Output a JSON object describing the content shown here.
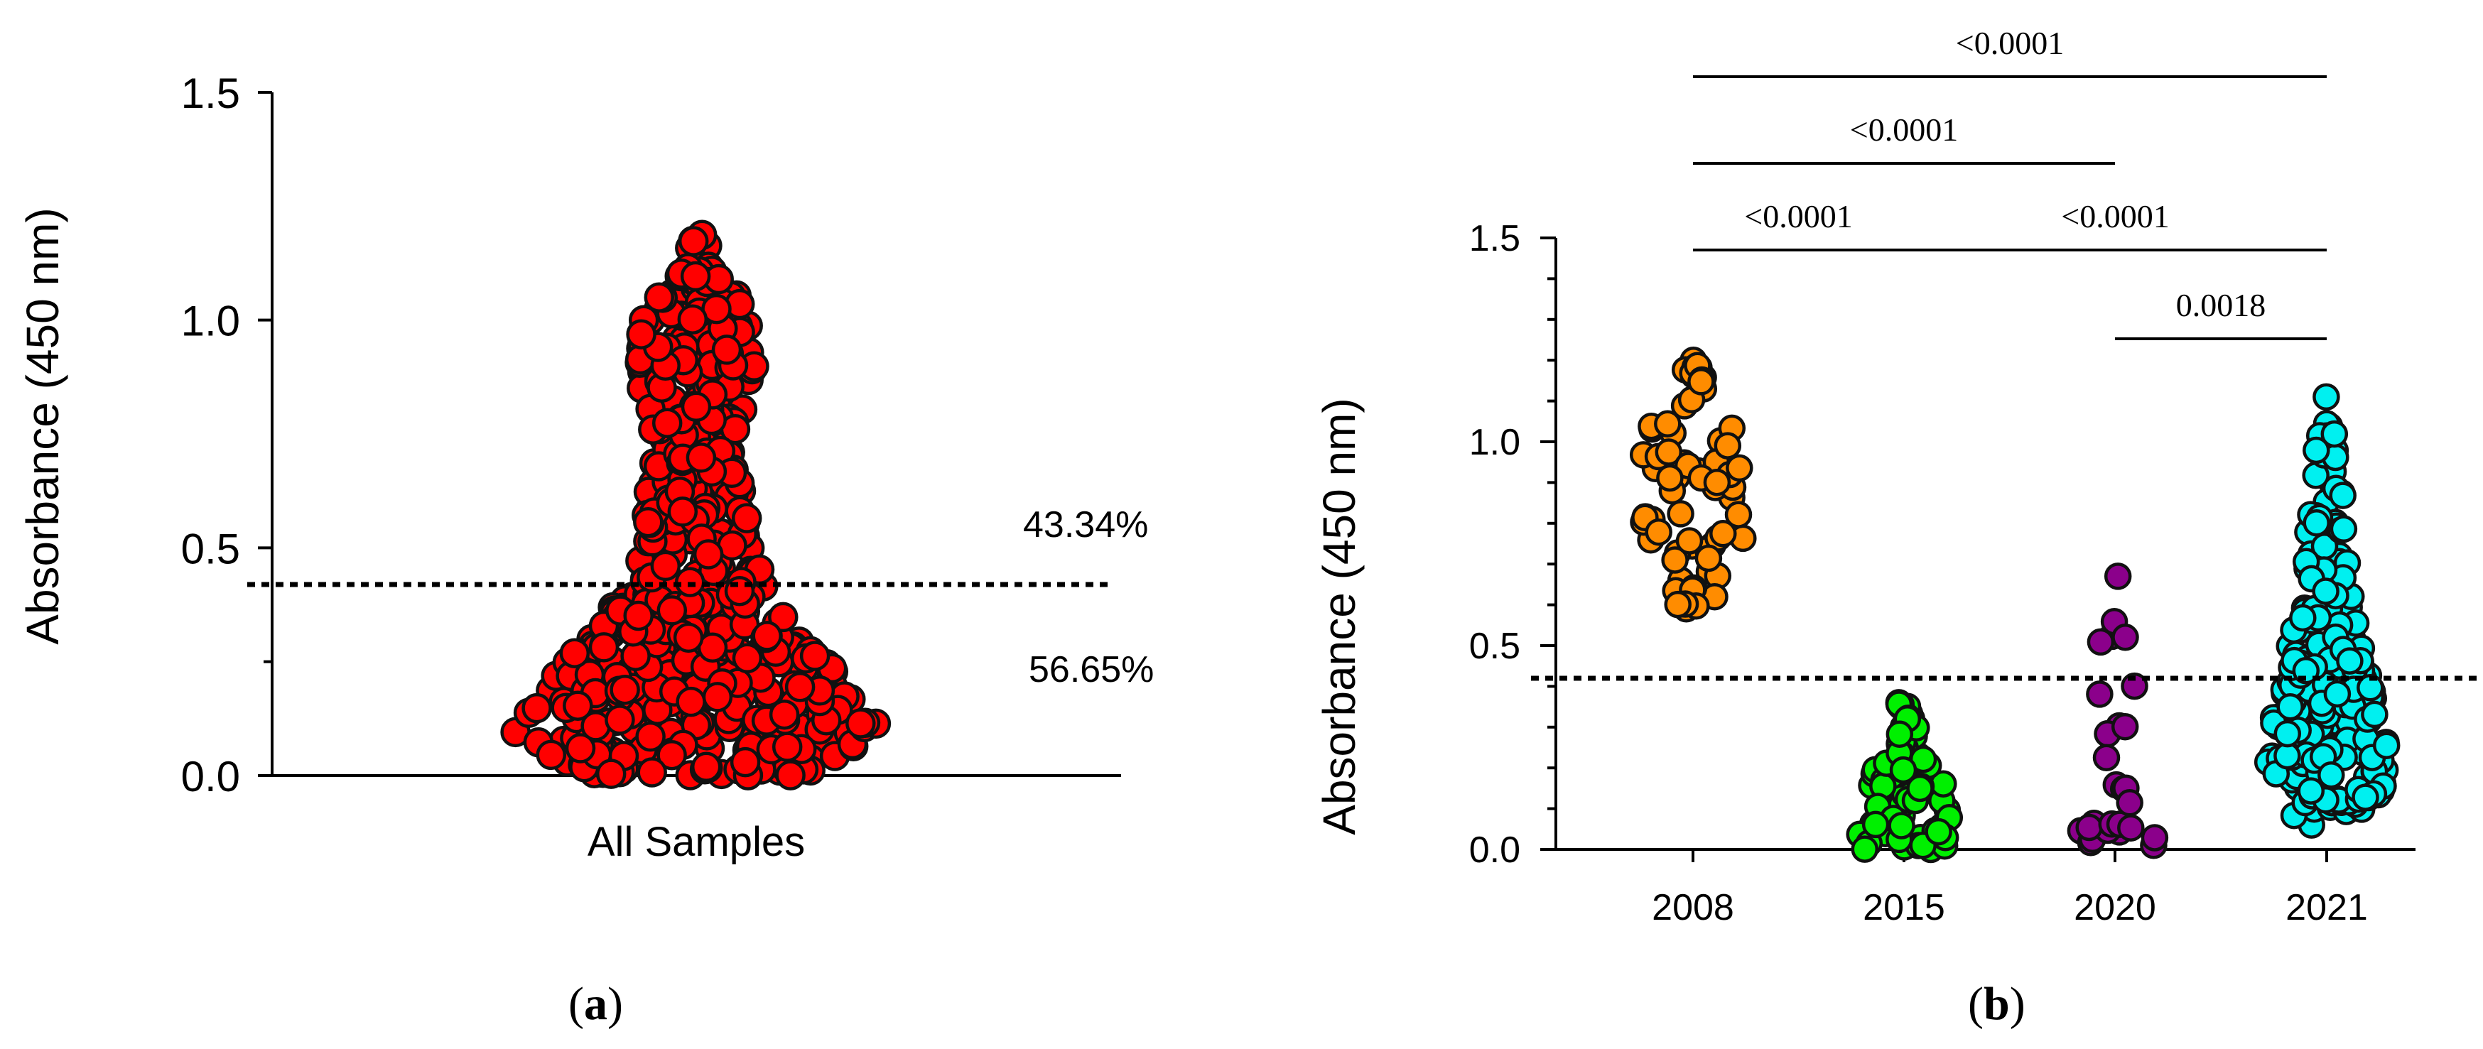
{
  "colors": {
    "all_samples": "#ff0000",
    "y2008": "#ff8c00",
    "y2015": "#00f000",
    "y2020": "#8b008b",
    "y2021": "#00f0f0"
  },
  "chart_data": [
    {
      "type": "scatter",
      "subtype": "beeswarm",
      "panel_label": "(a)",
      "ylabel": "Absorbance (450 nm)",
      "ylim": [
        0,
        1.5
      ],
      "yticks": [
        "0.0",
        "0.5",
        "1.0",
        "1.5"
      ],
      "categories": [
        "All Samples"
      ],
      "threshold": 0.42,
      "annotations": {
        "above": "43.34%",
        "below": "56.65%"
      },
      "series": [
        {
          "name": "All Samples",
          "point_count": 560,
          "min": 0.0,
          "max": 1.2,
          "median": 0.25
        }
      ]
    },
    {
      "type": "scatter",
      "subtype": "beeswarm",
      "panel_label": "(b)",
      "ylabel": "Absorbance (450 nm)",
      "ylim": [
        0,
        1.5
      ],
      "yticks": [
        "0.0",
        "0.5",
        "1.0",
        "1.5"
      ],
      "categories": [
        "2008",
        "2015",
        "2020",
        "2021"
      ],
      "threshold": 0.42,
      "series": [
        {
          "name": "2008",
          "point_count": 70,
          "min": 0.59,
          "max": 1.2
        },
        {
          "name": "2015",
          "point_count": 75,
          "min": 0.0,
          "max": 0.36
        },
        {
          "name": "2020",
          "point_count": 28,
          "min": 0.01,
          "max": 0.67
        },
        {
          "name": "2021",
          "point_count": 230,
          "min": 0.06,
          "max": 1.11
        }
      ],
      "comparisons": [
        {
          "from": "2008",
          "to": "2021",
          "p": "<0.0001"
        },
        {
          "from": "2008",
          "to": "2020",
          "p": "<0.0001"
        },
        {
          "from": "2015",
          "to": "2021",
          "p": "<0.0001"
        },
        {
          "from": "2008",
          "to": "2015",
          "p": "<0.0001"
        },
        {
          "from": "2020",
          "to": "2021",
          "p": "0.0018"
        }
      ]
    }
  ]
}
